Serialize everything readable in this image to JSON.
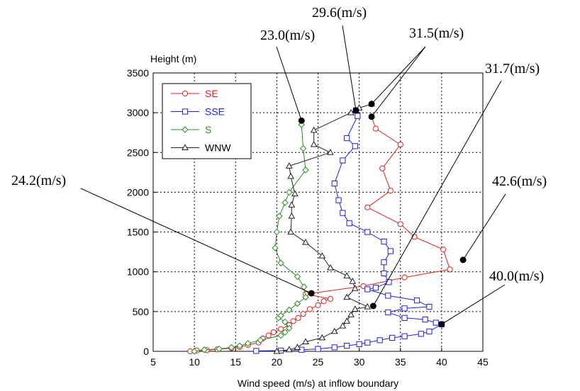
{
  "chart_data": {
    "type": "line",
    "title": "",
    "xlabel": "Wind speed (m/s) at inflow boundary",
    "ylabel": "Height (m)",
    "xlim": [
      5,
      45
    ],
    "ylim": [
      0,
      3500
    ],
    "x_ticks": [
      5,
      10,
      15,
      20,
      25,
      30,
      35,
      40,
      45
    ],
    "y_ticks": [
      0,
      500,
      1000,
      1500,
      2000,
      2500,
      3000,
      3500
    ],
    "grid": true,
    "legend_position": "top-left",
    "series": [
      {
        "name": "SE",
        "color": "#e02020",
        "marker": "circle",
        "points": [
          [
            9.5,
            0
          ],
          [
            10.3,
            10
          ],
          [
            11.5,
            15
          ],
          [
            12.8,
            25
          ],
          [
            14.5,
            40
          ],
          [
            15.5,
            55
          ],
          [
            16.5,
            80
          ],
          [
            17.8,
            110
          ],
          [
            18.3,
            160
          ],
          [
            19.0,
            200
          ],
          [
            19.6,
            240
          ],
          [
            20.5,
            280
          ],
          [
            21.5,
            330
          ],
          [
            22.0,
            380
          ],
          [
            22.6,
            420
          ],
          [
            23.2,
            470
          ],
          [
            24.0,
            530
          ],
          [
            25.0,
            580
          ],
          [
            25.7,
            630
          ],
          [
            26.5,
            660
          ],
          [
            23.5,
            720
          ],
          [
            30.5,
            820
          ],
          [
            35.5,
            930
          ],
          [
            41.0,
            1030
          ],
          [
            40.2,
            1280
          ],
          [
            36.7,
            1440
          ],
          [
            35.0,
            1600
          ],
          [
            31.0,
            1810
          ],
          [
            33.8,
            2020
          ],
          [
            32.8,
            2300
          ],
          [
            35.0,
            2600
          ],
          [
            32.0,
            2800
          ],
          [
            31.5,
            2950
          ]
        ]
      },
      {
        "name": "SSE",
        "color": "#2020e0",
        "marker": "square",
        "points": [
          [
            17.5,
            5
          ],
          [
            20.5,
            10
          ],
          [
            23.0,
            20
          ],
          [
            25.0,
            30
          ],
          [
            27.0,
            50
          ],
          [
            28.5,
            70
          ],
          [
            30.0,
            90
          ],
          [
            31.0,
            110
          ],
          [
            32.5,
            140
          ],
          [
            34.0,
            170
          ],
          [
            35.5,
            190
          ],
          [
            37.5,
            220
          ],
          [
            38.5,
            250
          ],
          [
            40.0,
            340
          ],
          [
            39.3,
            360
          ],
          [
            38.0,
            400
          ],
          [
            35.5,
            420
          ],
          [
            33.5,
            490
          ],
          [
            35.5,
            540
          ],
          [
            38.5,
            560
          ],
          [
            37.0,
            640
          ],
          [
            33.5,
            700
          ],
          [
            31.0,
            780
          ],
          [
            32.0,
            800
          ],
          [
            33.6,
            870
          ],
          [
            33.0,
            980
          ],
          [
            33.0,
            1120
          ],
          [
            33.8,
            1260
          ],
          [
            33.0,
            1380
          ],
          [
            31.0,
            1500
          ],
          [
            28.8,
            1610
          ],
          [
            28.0,
            1740
          ],
          [
            27.5,
            1900
          ],
          [
            27.0,
            2110
          ],
          [
            28.0,
            2400
          ],
          [
            29.5,
            2580
          ],
          [
            28.5,
            2680
          ],
          [
            29.8,
            2960
          ],
          [
            29.6,
            3030
          ]
        ]
      },
      {
        "name": "S",
        "color": "#2a8a2a",
        "marker": "diamond",
        "points": [
          [
            10.0,
            0
          ],
          [
            11.2,
            20
          ],
          [
            13.0,
            30
          ],
          [
            14.5,
            50
          ],
          [
            15.5,
            70
          ],
          [
            16.5,
            100
          ],
          [
            18.0,
            140
          ],
          [
            20.5,
            200
          ],
          [
            21.0,
            240
          ],
          [
            21.5,
            290
          ],
          [
            21.0,
            370
          ],
          [
            20.2,
            420
          ],
          [
            20.5,
            450
          ],
          [
            21.5,
            520
          ],
          [
            22.5,
            600
          ],
          [
            23.5,
            680
          ],
          [
            23.3,
            810
          ],
          [
            22.5,
            940
          ],
          [
            20.5,
            1110
          ],
          [
            19.8,
            1300
          ],
          [
            20.0,
            1500
          ],
          [
            20.3,
            1700
          ],
          [
            21.0,
            1870
          ],
          [
            21.5,
            2000
          ],
          [
            23.5,
            2280
          ],
          [
            23.2,
            2550
          ],
          [
            23.0,
            2850
          ],
          [
            23.0,
            2900
          ]
        ]
      },
      {
        "name": "WNW",
        "color": "#202020",
        "marker": "triangle",
        "points": [
          [
            20.0,
            0
          ],
          [
            21.5,
            20
          ],
          [
            22.5,
            50
          ],
          [
            23.5,
            120
          ],
          [
            25.5,
            170
          ],
          [
            27.0,
            250
          ],
          [
            28.0,
            320
          ],
          [
            28.5,
            380
          ],
          [
            29.0,
            460
          ],
          [
            29.5,
            530
          ],
          [
            31.0,
            560
          ],
          [
            28.5,
            680
          ],
          [
            29.5,
            790
          ],
          [
            29.2,
            880
          ],
          [
            28.5,
            950
          ],
          [
            26.5,
            1050
          ],
          [
            25.5,
            1200
          ],
          [
            23.5,
            1370
          ],
          [
            21.7,
            1500
          ],
          [
            21.8,
            1700
          ],
          [
            21.8,
            1840
          ],
          [
            22.2,
            1980
          ],
          [
            21.7,
            2200
          ],
          [
            21.5,
            2330
          ],
          [
            26.5,
            2500
          ],
          [
            24.5,
            2600
          ],
          [
            24.5,
            2780
          ],
          [
            29.0,
            3000
          ],
          [
            30.0,
            3060
          ],
          [
            31.5,
            3110
          ]
        ]
      }
    ],
    "annotations": [
      {
        "text": "23.0(m/s)",
        "point": [
          23.0,
          2900
        ]
      },
      {
        "text": "29.6(m/s)",
        "point": [
          29.6,
          3030
        ]
      },
      {
        "text": "31.5(m/s)",
        "point": [
          31.5,
          3110
        ]
      },
      {
        "text": "31.5(m/s)",
        "point": [
          31.5,
          2950
        ]
      },
      {
        "text": "31.7(m/s)",
        "point": [
          31.7,
          570
        ]
      },
      {
        "text": "24.2(m/s)",
        "point": [
          24.2,
          730
        ]
      },
      {
        "text": "42.6(m/s)",
        "point": [
          42.6,
          1150
        ]
      },
      {
        "text": "40.0(m/s)",
        "point": [
          40.0,
          340
        ]
      }
    ]
  }
}
